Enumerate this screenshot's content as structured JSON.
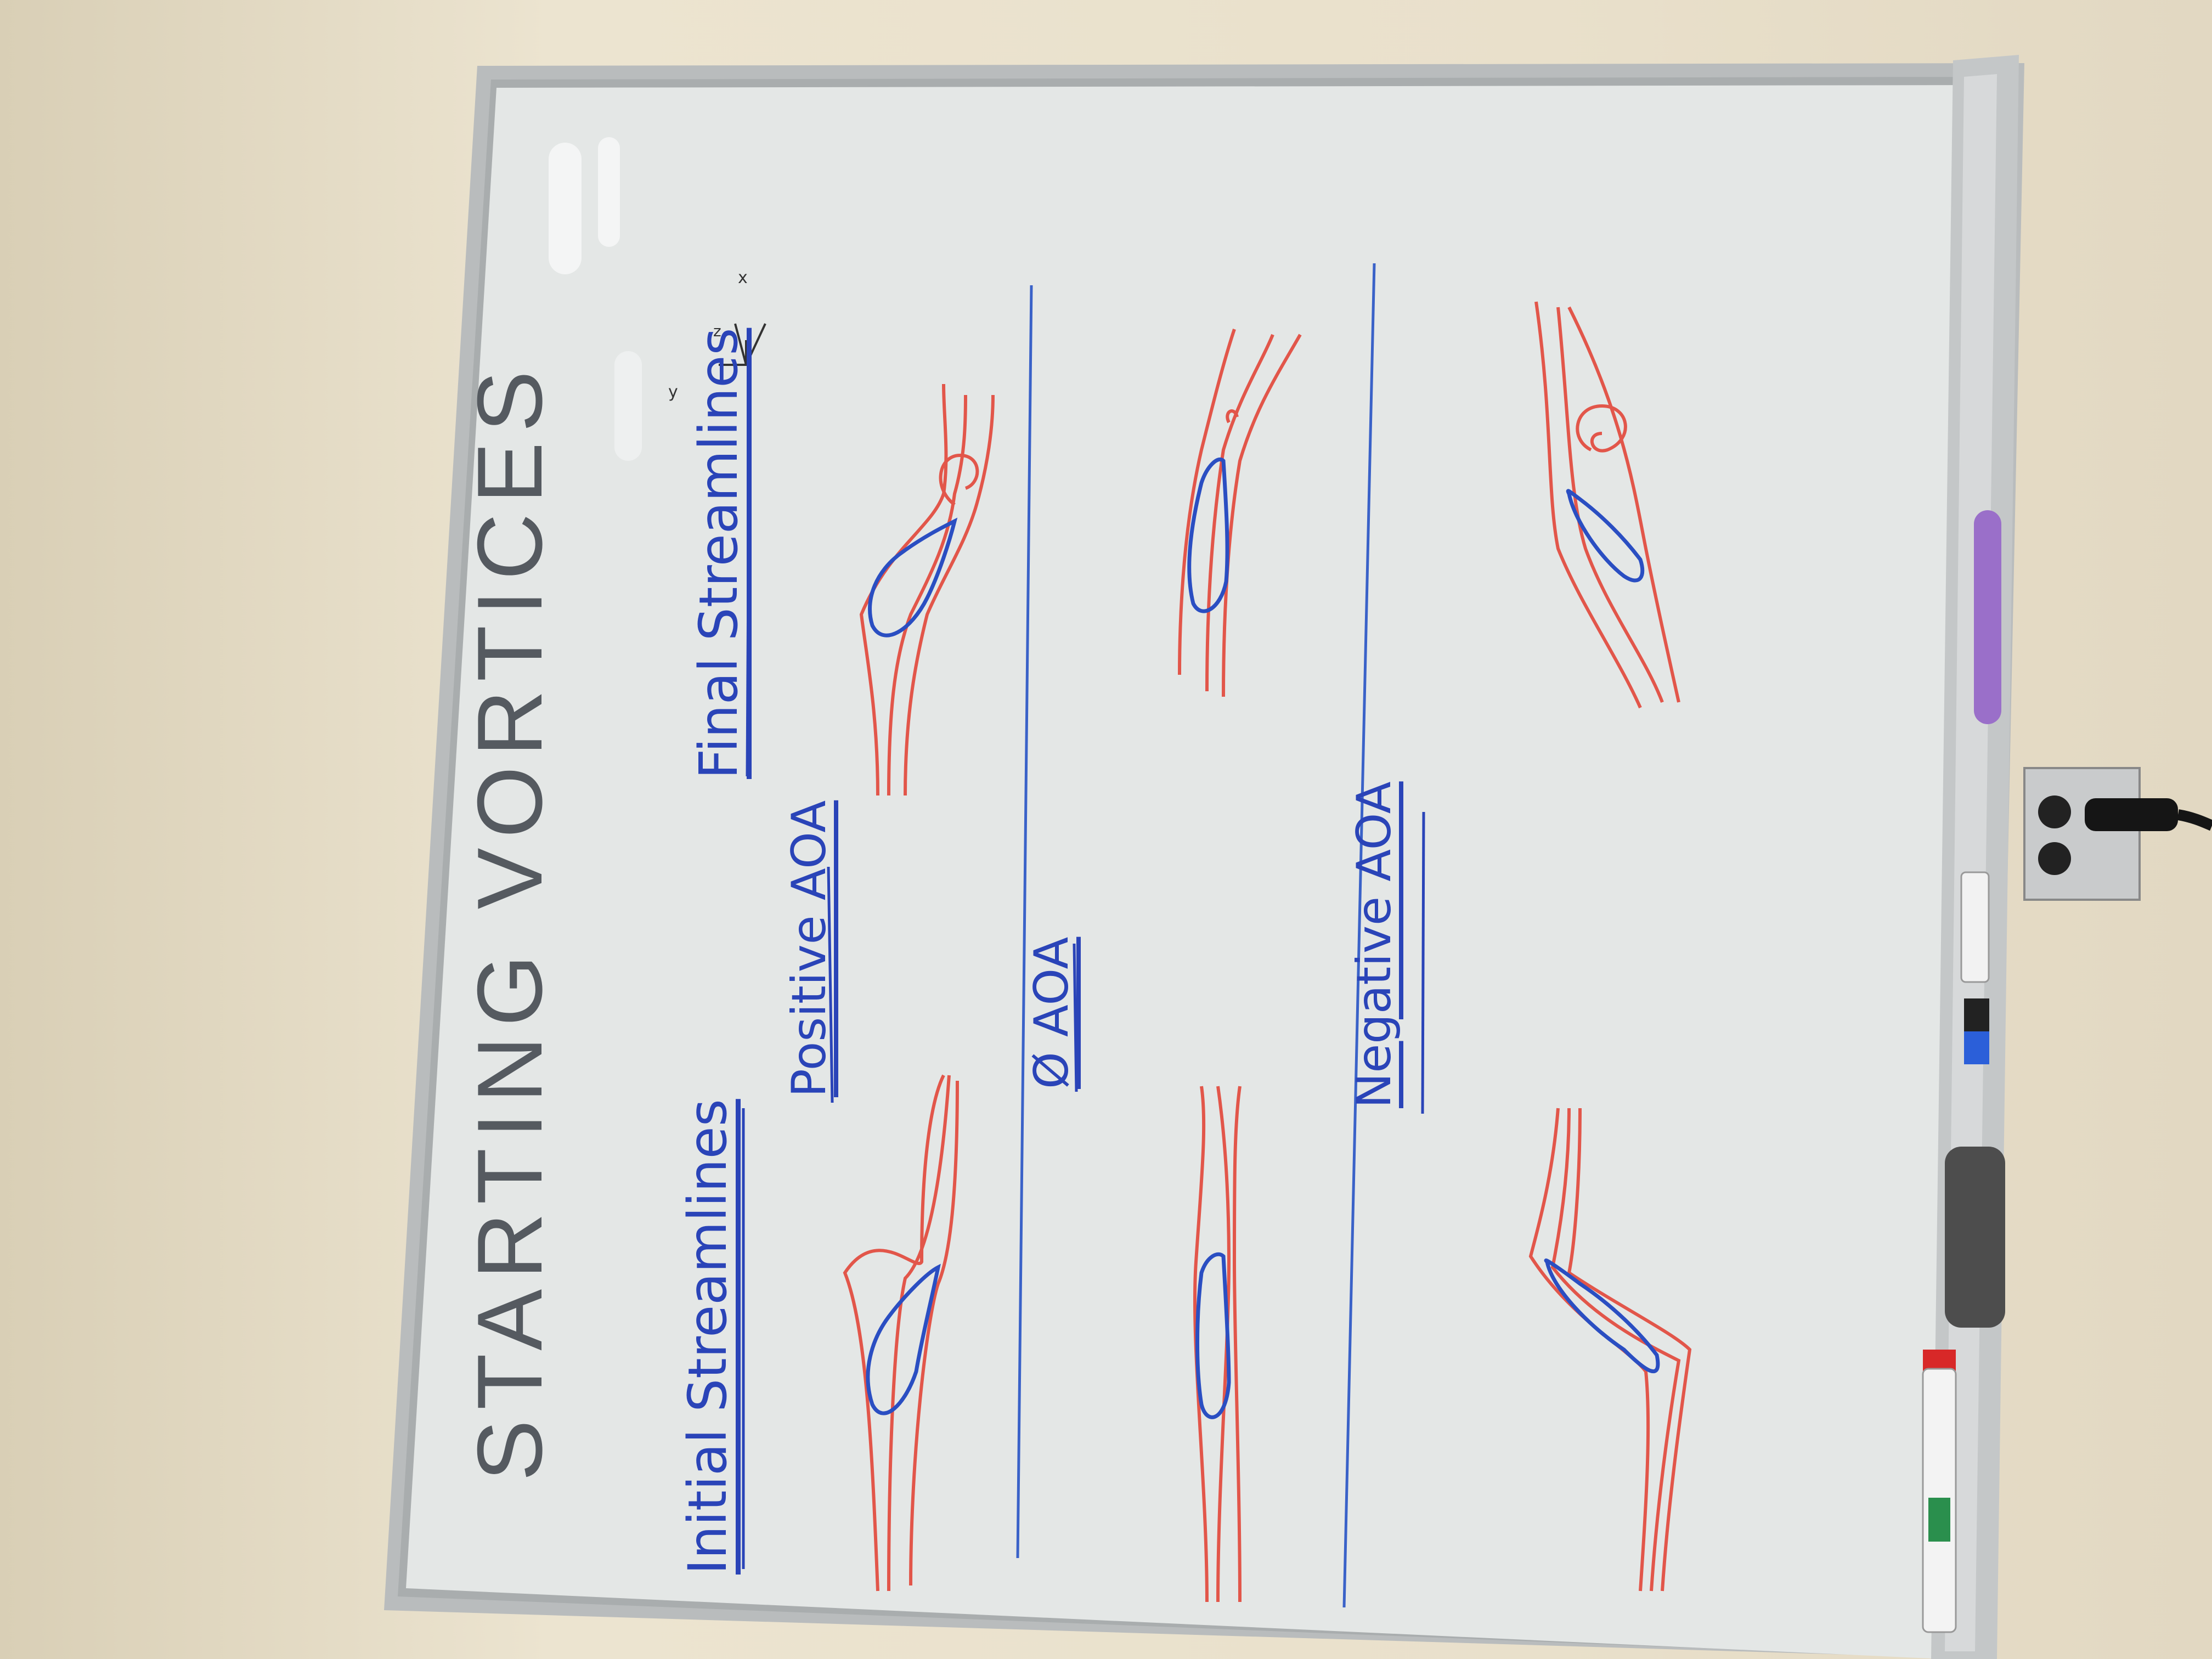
{
  "title": "STARTING VORTICES",
  "column_labels": {
    "initial": "Initial Streamlines",
    "final": "Final Streamlines"
  },
  "row_labels": {
    "positive": "Positive AOA",
    "zero": "Ø AOA",
    "negative": "Negative AOA"
  },
  "axis_labels": {
    "x": "x",
    "y": "y",
    "z": "z"
  },
  "colors": {
    "wall": "#e6dcc6",
    "board": "#e4e7e6",
    "frame": "#b9bcbd",
    "streamline": "#e2564a",
    "airfoil": "#2a4ec2",
    "divider": "#3a62c8",
    "title_ink": "#555a60"
  }
}
